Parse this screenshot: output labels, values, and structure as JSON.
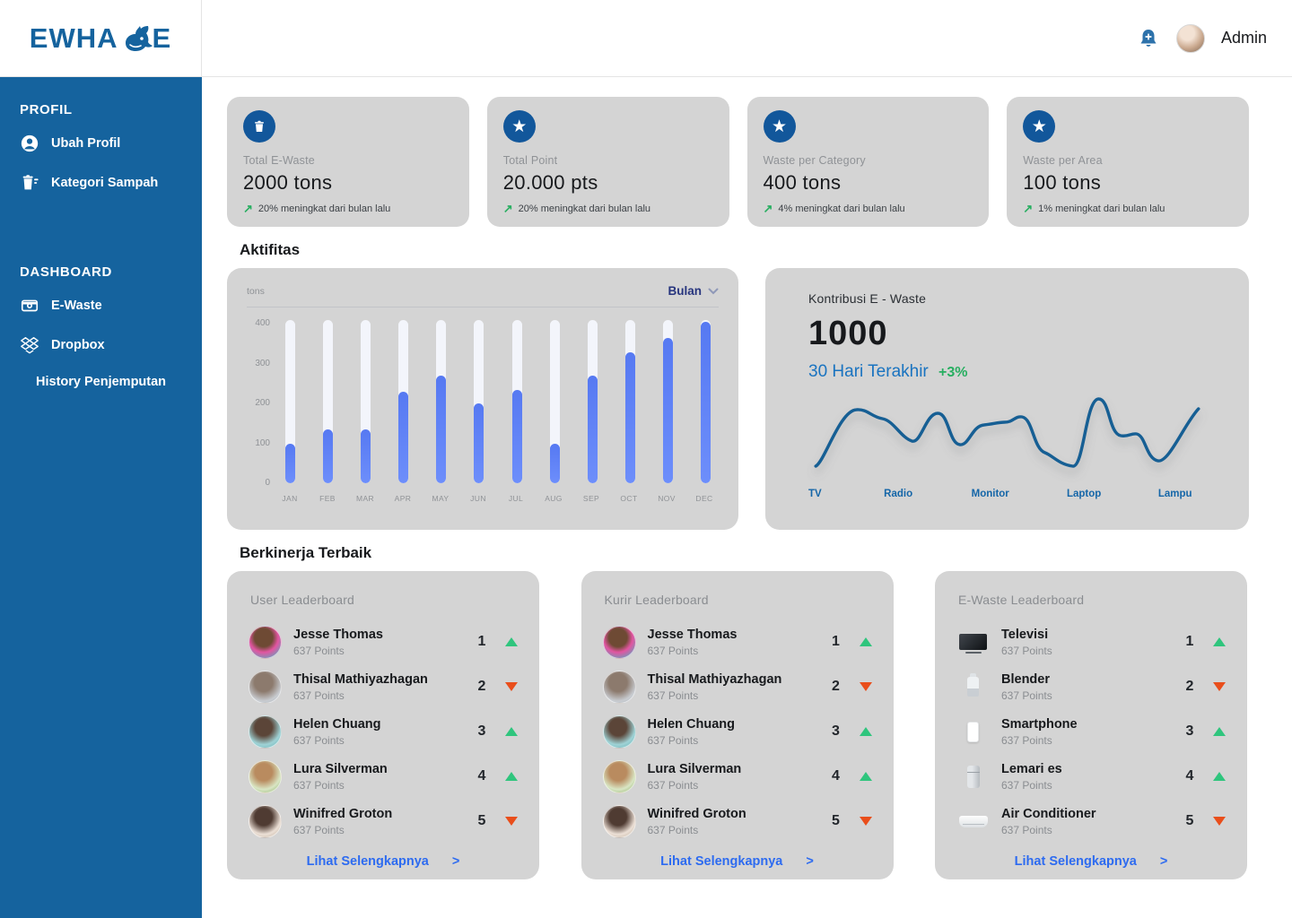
{
  "brand": {
    "logo_left": "EWHA",
    "logo_right": "E",
    "name": "EWHALE"
  },
  "header": {
    "user_name": "Admin"
  },
  "sidebar": {
    "sections": [
      {
        "title": "PROFIL",
        "items": [
          {
            "label": "Ubah Profil",
            "icon": "user-icon"
          },
          {
            "label": "Kategori Sampah",
            "icon": "trash-list-icon"
          }
        ]
      },
      {
        "title": "DASHBOARD",
        "items": [
          {
            "label": "E-Waste",
            "icon": "wallet-icon"
          },
          {
            "label": "Dropbox",
            "icon": "dropbox-icon"
          },
          {
            "label": "History Penjemputan",
            "icon": ""
          }
        ]
      }
    ]
  },
  "stat_cards": [
    {
      "icon": "trash-icon",
      "label": "Total E-Waste",
      "value": "2000 tons",
      "trend_arrow": "↗",
      "trend": "20% meningkat dari bulan lalu"
    },
    {
      "icon": "star-icon",
      "label": "Total Point",
      "value": "20.000 pts",
      "trend_arrow": "↗",
      "trend": "20% meningkat dari bulan lalu"
    },
    {
      "icon": "star-icon",
      "label": "Waste per Category",
      "value": "400 tons",
      "trend_arrow": "↗",
      "trend": "4% meningkat dari bulan lalu"
    },
    {
      "icon": "star-icon",
      "label": "Waste per Area",
      "value": "100 tons",
      "trend_arrow": "↗",
      "trend": "1% meningkat dari bulan lalu"
    }
  ],
  "activity": {
    "section_title": "Aktifitas",
    "unit_label": "tons",
    "filter_label": "Bulan"
  },
  "contribution": {
    "title": "Kontribusi E - Waste",
    "value": "1000",
    "period": "30 Hari Terakhir",
    "change": "+3%"
  },
  "chart_data": [
    {
      "type": "bar",
      "title": "Aktifitas",
      "ylabel": "tons",
      "ylim": [
        0,
        410
      ],
      "yticks": [
        400,
        300,
        200,
        100,
        0
      ],
      "categories": [
        "JAN",
        "FEB",
        "MAR",
        "APR",
        "MAY",
        "JUN",
        "JUL",
        "AUG",
        "SEP",
        "OCT",
        "NOV",
        "DEC"
      ],
      "values": [
        100,
        135,
        135,
        230,
        270,
        200,
        235,
        100,
        270,
        330,
        365,
        405
      ],
      "track_max": 410,
      "grid": false,
      "filter": "Bulan"
    },
    {
      "type": "line",
      "title": "Kontribusi E - Waste",
      "headline_value": "1000",
      "subtitle": "30 Hari Terakhir",
      "change": "+3%",
      "categories": [
        "TV",
        "Radio",
        "Monitor",
        "Laptop",
        "Lampu"
      ],
      "label_positions_pct": [
        0,
        19,
        41,
        65,
        88
      ],
      "shape_note": "wavy line: peaks after TV, above Radio, mid plateau at Monitor, deep valley at Laptop, highest peak after Laptop, valley at Lampu, rising at right edge"
    }
  ],
  "performance": {
    "section_title": "Berkinerja Terbaik",
    "link_label": "Lihat Selengkapnya",
    "link_arrow": ">"
  },
  "leaderboards": [
    {
      "title": "User Leaderboard",
      "type": "people",
      "rows": [
        {
          "name": "Jesse Thomas",
          "points": "637 Points",
          "rank": "1",
          "trend": "up"
        },
        {
          "name": "Thisal Mathiyazhagan",
          "points": "637 Points",
          "rank": "2",
          "trend": "down"
        },
        {
          "name": "Helen Chuang",
          "points": "637 Points",
          "rank": "3",
          "trend": "up"
        },
        {
          "name": "Lura Silverman",
          "points": "637 Points",
          "rank": "4",
          "trend": "up"
        },
        {
          "name": "Winifred Groton",
          "points": "637 Points",
          "rank": "5",
          "trend": "down"
        }
      ]
    },
    {
      "title": "Kurir Leaderboard",
      "type": "people",
      "rows": [
        {
          "name": "Jesse Thomas",
          "points": "637 Points",
          "rank": "1",
          "trend": "up"
        },
        {
          "name": "Thisal Mathiyazhagan",
          "points": "637 Points",
          "rank": "2",
          "trend": "down"
        },
        {
          "name": "Helen Chuang",
          "points": "637 Points",
          "rank": "3",
          "trend": "up"
        },
        {
          "name": "Lura Silverman",
          "points": "637 Points",
          "rank": "4",
          "trend": "up"
        },
        {
          "name": "Winifred Groton",
          "points": "637 Points",
          "rank": "5",
          "trend": "down"
        }
      ]
    },
    {
      "title": "E-Waste Leaderboard",
      "type": "items",
      "rows": [
        {
          "name": "Televisi",
          "points": "637 Points",
          "rank": "1",
          "trend": "up",
          "icon": "tv-icon"
        },
        {
          "name": "Blender",
          "points": "637 Points",
          "rank": "2",
          "trend": "down",
          "icon": "blender-icon"
        },
        {
          "name": "Smartphone",
          "points": "637 Points",
          "rank": "3",
          "trend": "up",
          "icon": "smartphone-icon"
        },
        {
          "name": "Lemari es",
          "points": "637 Points",
          "rank": "4",
          "trend": "up",
          "icon": "fridge-icon"
        },
        {
          "name": "Air Conditioner",
          "points": "637 Points",
          "rank": "5",
          "trend": "down",
          "icon": "ac-icon"
        }
      ]
    }
  ],
  "colors": {
    "sidebar_blue": "#15639e",
    "bar_fill": "#5679f2",
    "bar_track": "#f3f5fb",
    "line_blue": "#155f94",
    "link_blue": "#2d6bf0",
    "up_green": "#2fc57d",
    "down_red": "#e94e1b",
    "card_gray": "#d4d4d4",
    "accent_navy": "#27357e"
  }
}
